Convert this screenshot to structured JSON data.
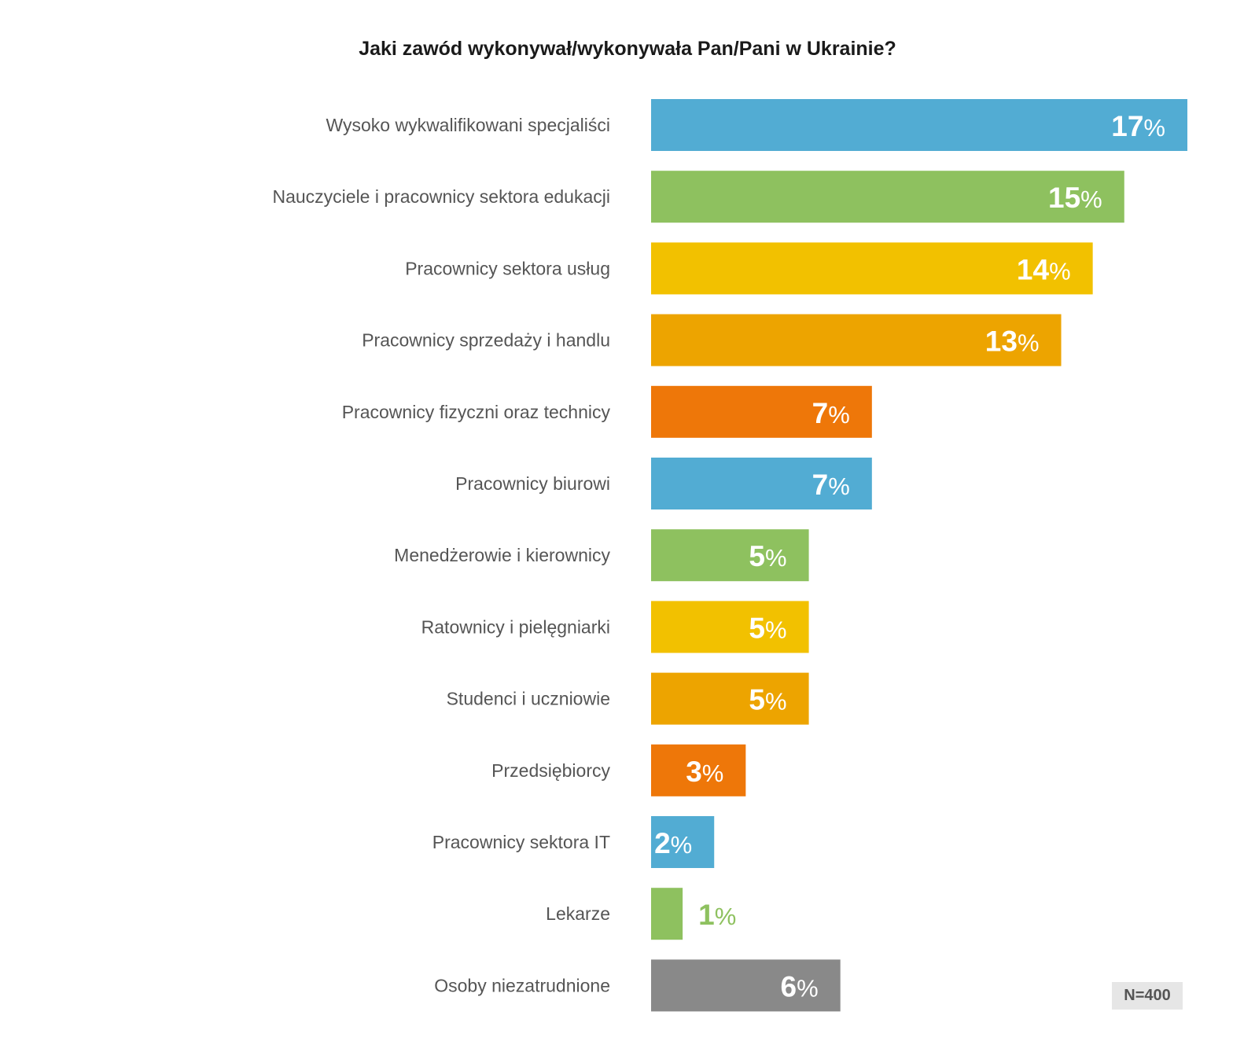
{
  "chart_data": {
    "type": "bar",
    "orientation": "horizontal",
    "title": "Jaki zawód wykonywał/wykonywała Pan/Pani w Ukrainie?",
    "unit": "%",
    "categories": [
      "Wysoko wykwalifikowani specjaliści",
      "Nauczyciele i pracownicy sektora edukacji",
      "Pracownicy sektora usług",
      "Pracownicy sprzedaży i handlu",
      "Pracownicy fizyczni oraz technicy",
      "Pracownicy biurowi",
      "Menedżerowie i kierownicy",
      "Ratownicy i pielęgniarki",
      "Studenci i uczniowie",
      "Przedsiębiorcy",
      "Pracownicy sektora IT",
      "Lekarze",
      "Osoby niezatrudnione"
    ],
    "values": [
      17,
      15,
      14,
      13,
      7,
      7,
      5,
      5,
      5,
      3,
      2,
      1,
      6
    ],
    "colors": [
      "#52acd3",
      "#8ec15f",
      "#f2c100",
      "#eda400",
      "#ee7709",
      "#52acd3",
      "#8ec15f",
      "#f2c100",
      "#eda400",
      "#ee7709",
      "#52acd3",
      "#8ec15f",
      "#898989"
    ],
    "xlim": [
      0,
      17
    ],
    "grid": false,
    "legend": "none"
  },
  "sample_note": "N=400"
}
